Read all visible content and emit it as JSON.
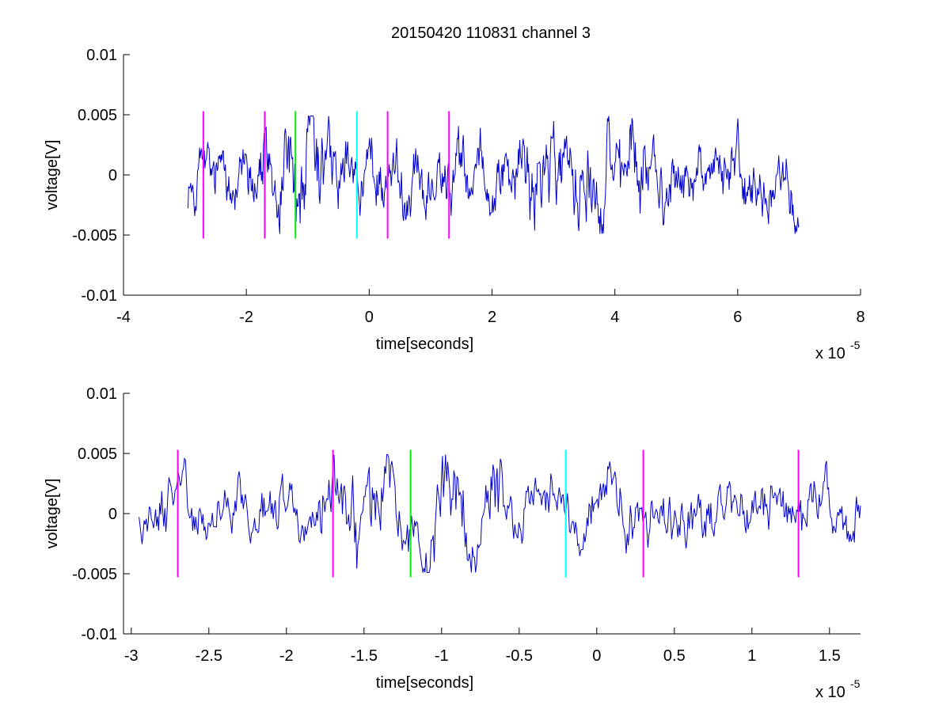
{
  "title": "20150420 110831 channel 3",
  "colors": {
    "signal": "#0000cc",
    "magenta": "#ff00ff",
    "green": "#00ee00",
    "cyan": "#00ffff",
    "axis": "#000000"
  },
  "chart_data": [
    {
      "type": "line",
      "title": "20150420 110831 channel 3",
      "xlabel": "time[seconds]",
      "ylabel": "voltage[V]",
      "x_multiplier_label": "x 10",
      "x_multiplier_exponent": "-5",
      "xlim": [
        -4,
        8
      ],
      "ylim": [
        -0.01,
        0.01
      ],
      "xticks": [
        -4,
        -2,
        0,
        2,
        4,
        6,
        8
      ],
      "xtick_labels": [
        "-4",
        "-2",
        "0",
        "2",
        "4",
        "6",
        "8"
      ],
      "yticks": [
        0.01,
        0.005,
        0,
        -0.005,
        -0.01
      ],
      "ytick_labels": [
        "0.01",
        "0.005",
        "0",
        "-0.005",
        "-0.01"
      ],
      "series": [
        {
          "signal": "noisy voltage trace",
          "x_range": [
            -2.95,
            7.0
          ],
          "y_range": [
            -0.005,
            0.005
          ],
          "color": "#0000cc"
        }
      ],
      "markers": [
        {
          "x": -2.7,
          "color": "#ff00ff",
          "y": [
            -0.0053,
            0.0053
          ]
        },
        {
          "x": -1.7,
          "color": "#ff00ff",
          "y": [
            -0.0053,
            0.0053
          ]
        },
        {
          "x": -1.2,
          "color": "#00ee00",
          "y": [
            -0.0053,
            0.0053
          ]
        },
        {
          "x": -0.2,
          "color": "#00ffff",
          "y": [
            -0.0053,
            0.0053
          ]
        },
        {
          "x": 0.3,
          "color": "#ff00ff",
          "y": [
            -0.0053,
            0.0053
          ]
        },
        {
          "x": 1.3,
          "color": "#ff00ff",
          "y": [
            -0.0053,
            0.0053
          ]
        }
      ]
    },
    {
      "type": "line",
      "title": "",
      "xlabel": "time[seconds]",
      "ylabel": "voltage[V]",
      "x_multiplier_label": "x 10",
      "x_multiplier_exponent": "-5",
      "xlim": [
        -3.05,
        1.7
      ],
      "ylim": [
        -0.01,
        0.01
      ],
      "xticks": [
        -3,
        -2.5,
        -2,
        -1.5,
        -1,
        -0.5,
        0,
        0.5,
        1,
        1.5
      ],
      "xtick_labels": [
        "-3",
        "-2.5",
        "-2",
        "-1.5",
        "-1",
        "-0.5",
        "0",
        "0.5",
        "1",
        "1.5"
      ],
      "yticks": [
        0.01,
        0.005,
        0,
        -0.005,
        -0.01
      ],
      "ytick_labels": [
        "0.01",
        "0.005",
        "0",
        "-0.005",
        "-0.01"
      ],
      "series": [
        {
          "signal": "noisy voltage trace (zoom)",
          "x_range": [
            -2.95,
            1.7
          ],
          "y_range": [
            -0.005,
            0.005
          ],
          "color": "#0000cc"
        }
      ],
      "markers": [
        {
          "x": -2.7,
          "color": "#ff00ff",
          "y": [
            -0.0053,
            0.0053
          ]
        },
        {
          "x": -1.7,
          "color": "#ff00ff",
          "y": [
            -0.0053,
            0.0053
          ]
        },
        {
          "x": -1.2,
          "color": "#00ee00",
          "y": [
            -0.0053,
            0.0053
          ]
        },
        {
          "x": -0.2,
          "color": "#00ffff",
          "y": [
            -0.0053,
            0.0053
          ]
        },
        {
          "x": 0.3,
          "color": "#ff00ff",
          "y": [
            -0.0053,
            0.0053
          ]
        },
        {
          "x": 1.3,
          "color": "#ff00ff",
          "y": [
            -0.0053,
            0.0053
          ]
        }
      ]
    }
  ]
}
